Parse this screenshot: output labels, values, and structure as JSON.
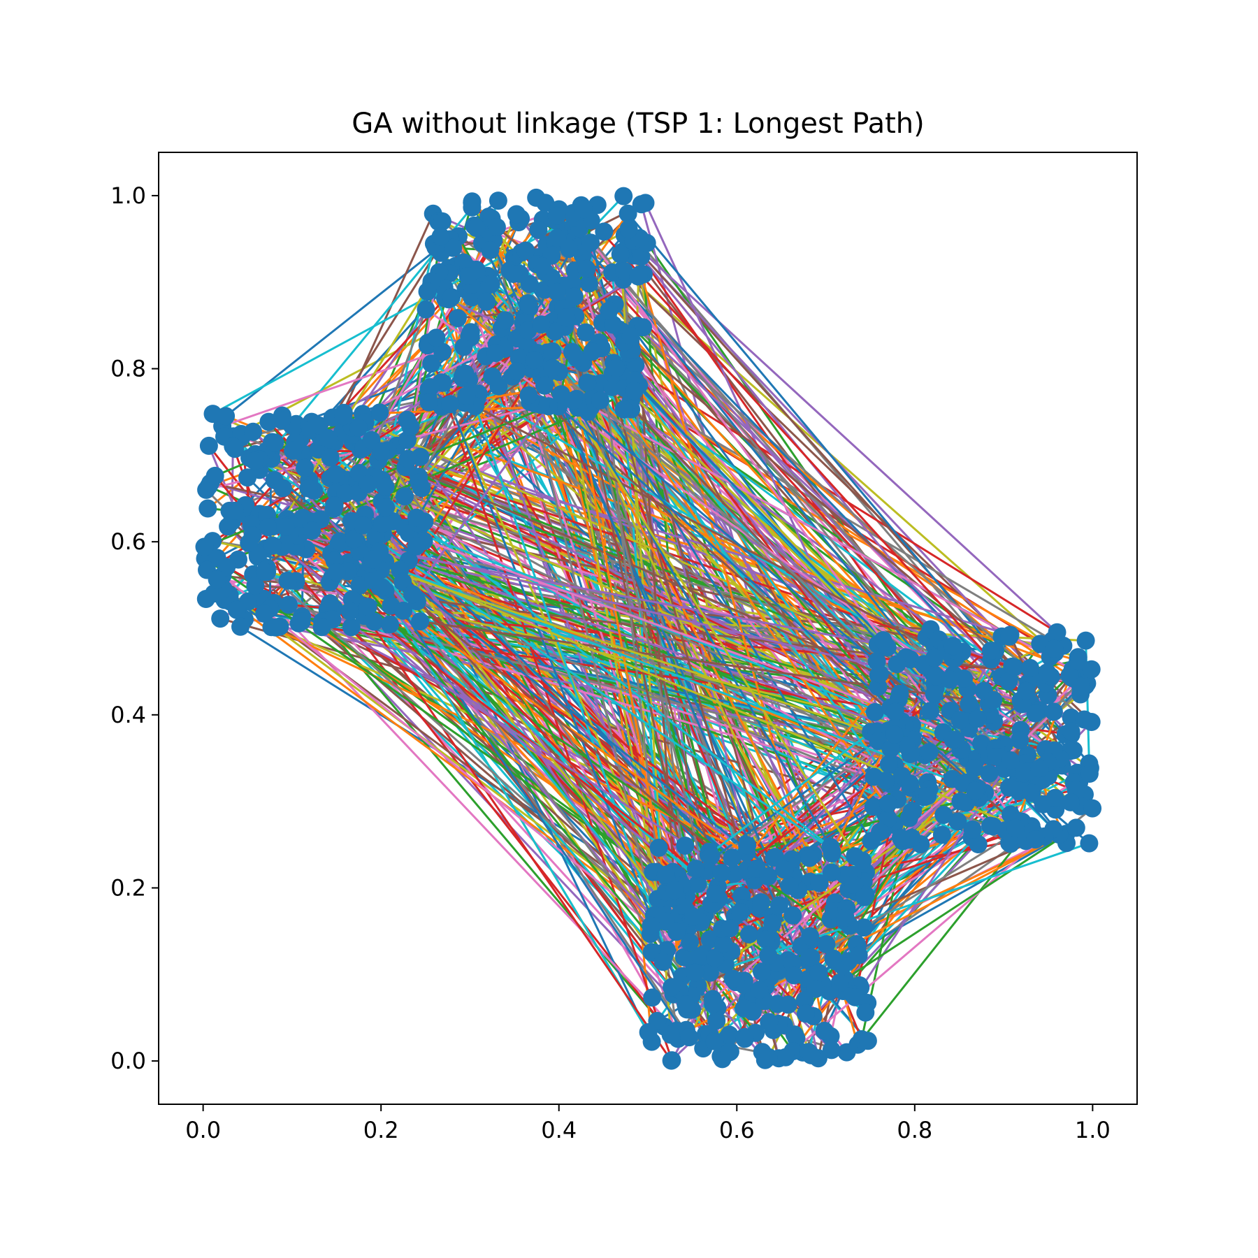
{
  "chart_data": {
    "type": "line",
    "title": "GA without linkage (TSP 1: Longest Path)",
    "xlabel": "",
    "ylabel": "",
    "xlim": [
      -0.05,
      1.05
    ],
    "ylim": [
      -0.05,
      1.05
    ],
    "grid": false,
    "legend": "none",
    "x_ticks": [
      {
        "value": 0.0,
        "label": "0.0"
      },
      {
        "value": 0.2,
        "label": "0.2"
      },
      {
        "value": 0.4,
        "label": "0.4"
      },
      {
        "value": 0.6,
        "label": "0.6"
      },
      {
        "value": 0.8,
        "label": "0.8"
      },
      {
        "value": 1.0,
        "label": "1.0"
      }
    ],
    "y_ticks": [
      {
        "value": 0.0,
        "label": "0.0"
      },
      {
        "value": 0.2,
        "label": "0.2"
      },
      {
        "value": 0.4,
        "label": "0.4"
      },
      {
        "value": 0.6,
        "label": "0.6"
      },
      {
        "value": 0.8,
        "label": "0.8"
      },
      {
        "value": 1.0,
        "label": "1.0"
      }
    ],
    "marker_color": "#1f77b4",
    "line_colors": [
      "#1f77b4",
      "#ff7f0e",
      "#2ca02c",
      "#d62728",
      "#9467bd",
      "#8c564b",
      "#e377c2",
      "#7f7f7f",
      "#bcbd22",
      "#17becf"
    ],
    "clusters": [
      {
        "name": "upper-left",
        "x_range": [
          0.0,
          0.25
        ],
        "y_range": [
          0.5,
          0.75
        ]
      },
      {
        "name": "top",
        "x_range": [
          0.25,
          0.5
        ],
        "y_range": [
          0.75,
          1.0
        ]
      },
      {
        "name": "right",
        "x_range": [
          0.75,
          1.0
        ],
        "y_range": [
          0.25,
          0.5
        ]
      },
      {
        "name": "bottom",
        "x_range": [
          0.5,
          0.75
        ],
        "y_range": [
          0.0,
          0.25
        ]
      }
    ],
    "points_per_cluster": 250
  }
}
